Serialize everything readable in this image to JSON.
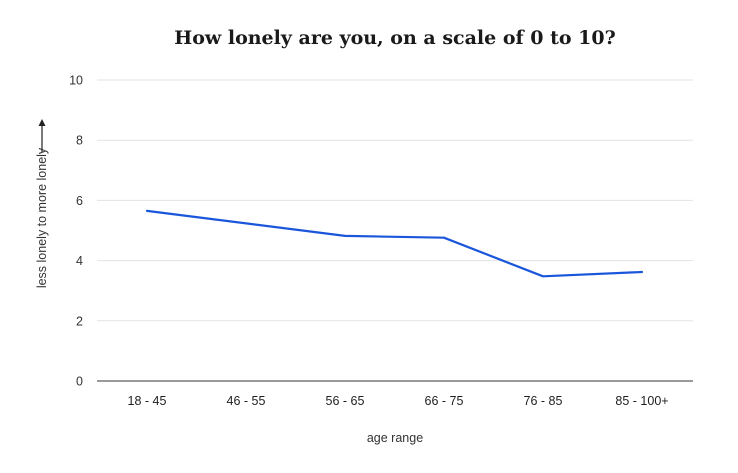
{
  "chart_data": {
    "type": "line",
    "title": "How lonely are you, on a scale of 0 to 10?",
    "xlabel": "age range",
    "ylabel": "less lonely to more lonely",
    "ylim": [
      0,
      10
    ],
    "yticks": [
      "0",
      "2",
      "4",
      "6",
      "8",
      "10"
    ],
    "grid": true,
    "categories": [
      "18 - 45",
      "46 - 55",
      "56 - 65",
      "66 - 75",
      "76 - 85",
      "85 - 100+"
    ],
    "series": [
      {
        "values": [
          5.65,
          null,
          4.82,
          4.76,
          3.48,
          3.62
        ],
        "color": "#1a56db"
      }
    ],
    "ylabel_arrow_icon": "arrow-up-icon"
  }
}
